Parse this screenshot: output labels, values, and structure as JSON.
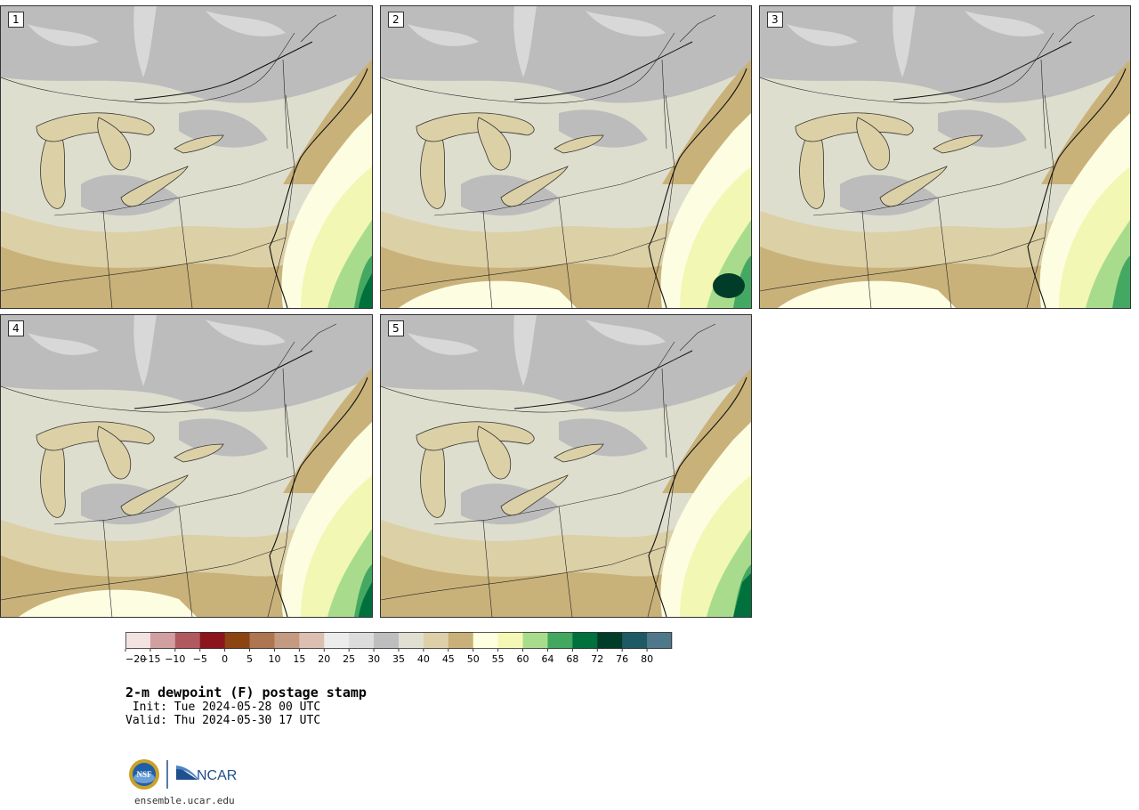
{
  "panels": [
    {
      "label": "1",
      "variant": 0
    },
    {
      "label": "2",
      "variant": 1
    },
    {
      "label": "3",
      "variant": 2
    },
    {
      "label": "4",
      "variant": 3
    },
    {
      "label": "5",
      "variant": 4
    }
  ],
  "colorbar": {
    "colors": [
      "#f2e2e2",
      "#d29fa0",
      "#b05a5f",
      "#8b141e",
      "#8c4413",
      "#ad7550",
      "#c49a80",
      "#dcbfb0",
      "#ececec",
      "#dcdcdc",
      "#bebebe",
      "#e0e0d2",
      "#ddd0a8",
      "#c8b078",
      "#fefee0",
      "#f4f8b4",
      "#a8dc8c",
      "#42a860",
      "#00703c",
      "#003c28",
      "#1e5a64",
      "#50788c"
    ],
    "ticks": [
      "−20",
      "−15",
      "−10",
      "−5",
      "0",
      "5",
      "10",
      "15",
      "20",
      "25",
      "30",
      "35",
      "40",
      "45",
      "50",
      "55",
      "60",
      "64",
      "68",
      "72",
      "76",
      "80"
    ]
  },
  "title": "2-m dewpoint (F) postage stamp",
  "init": " Init: Tue 2024-05-28 00 UTC",
  "valid": "Valid: Thu 2024-05-30 17 UTC",
  "logos": {
    "nsf": "NSF",
    "ncar": "NCAR"
  },
  "site": "ensemble.ucar.edu"
}
